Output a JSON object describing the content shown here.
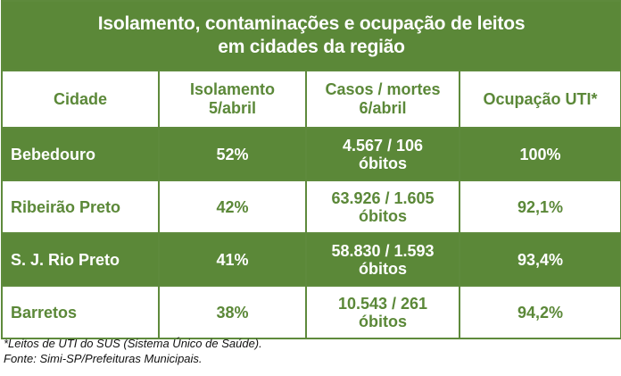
{
  "title": {
    "line1": "Isolamento, contaminações e ocupação de leitos",
    "line2": "em cidades da região"
  },
  "columns": {
    "city": "Cidade",
    "isolation_line1": "Isolamento",
    "isolation_line2": "5/abril",
    "cases_line1": "Casos / mortes",
    "cases_line2": "6/abril",
    "icu": "Ocupação UTI*"
  },
  "rows": [
    {
      "city": "Bebedouro",
      "isolation": "52%",
      "cases": "4.567 / 106",
      "deaths_label": "óbitos",
      "icu": "100%"
    },
    {
      "city": "Ribeirão Preto",
      "isolation": "42%",
      "cases": "63.926 / 1.605",
      "deaths_label": "óbitos",
      "icu": "92,1%"
    },
    {
      "city": "S. J. Rio Preto",
      "isolation": "41%",
      "cases": "58.830 / 1.593",
      "deaths_label": "óbitos",
      "icu": "93,4%"
    },
    {
      "city": "Barretos",
      "isolation": "38%",
      "cases": "10.543 / 261",
      "deaths_label": "óbitos",
      "icu": "94,2%"
    }
  ],
  "footnotes": {
    "note": "*Leitos de UTI do SUS (Sistema Único de Saúde).",
    "source": "Fonte: Simi-SP/Prefeituras Municipais."
  },
  "colors": {
    "green": "#5b8838",
    "white": "#ffffff"
  }
}
